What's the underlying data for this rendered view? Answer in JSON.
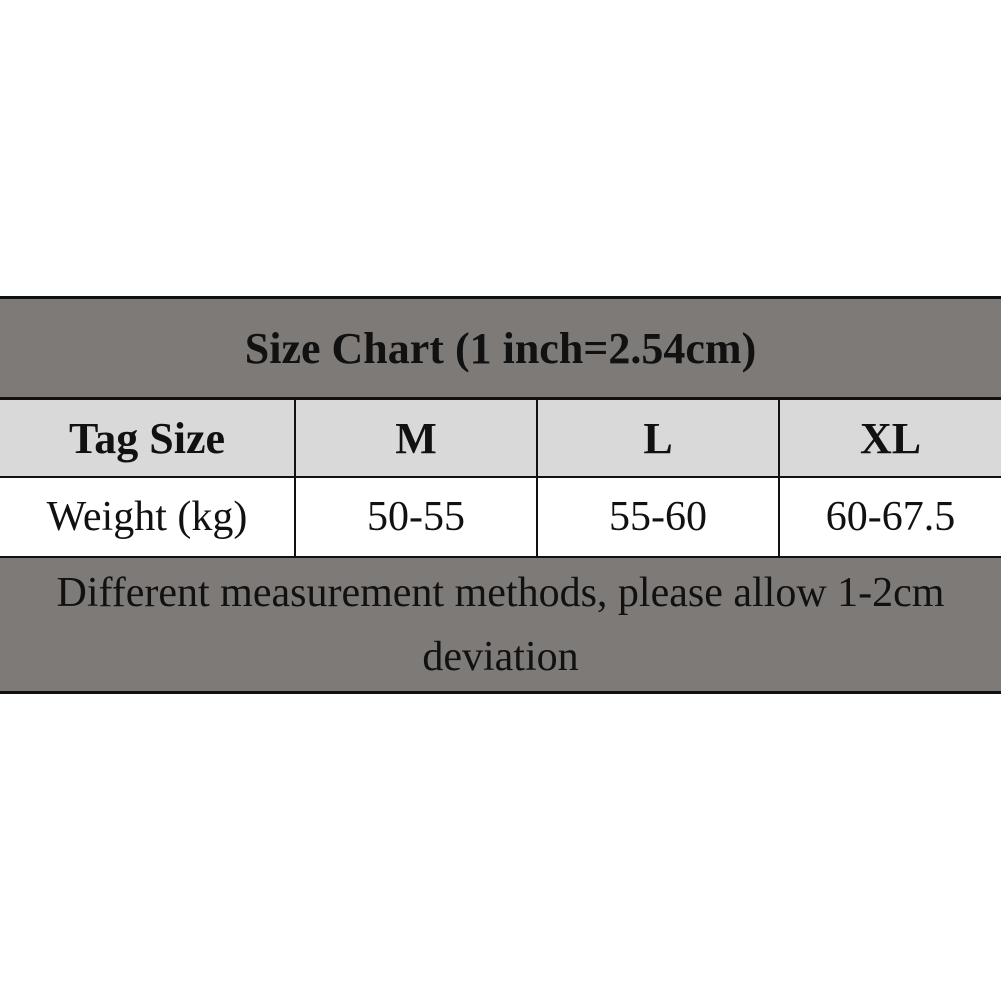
{
  "table": {
    "title": "Size Chart (1 inch=2.54cm)",
    "header": [
      "Tag Size",
      "M",
      "L",
      "XL"
    ],
    "rows": [
      [
        "Weight (kg)",
        "50-55",
        "55-60",
        "60-67.5"
      ]
    ],
    "note": "Different measurement methods, please allow 1-2cm deviation"
  }
}
